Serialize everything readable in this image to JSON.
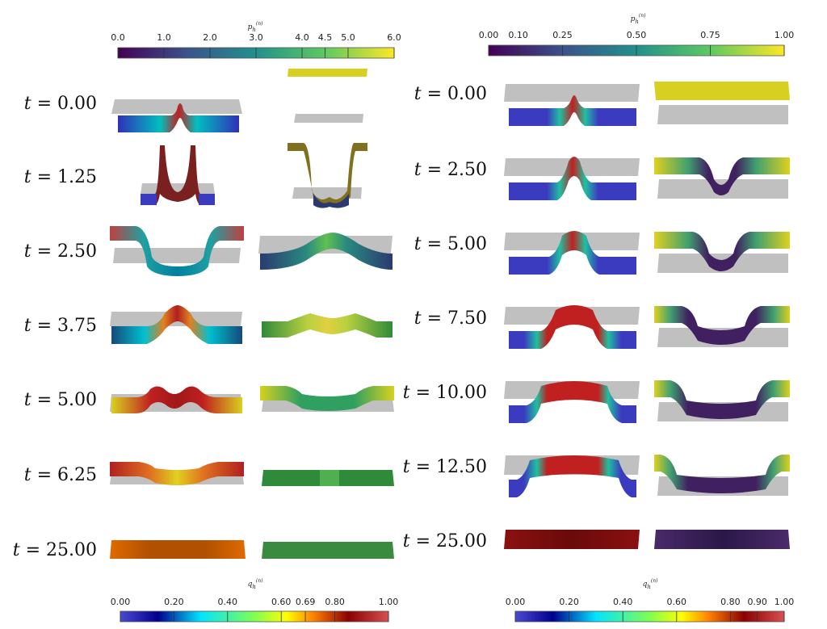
{
  "colorbars": {
    "p_left": {
      "title": "p_h^(n)",
      "ticks": [
        "0.0",
        "1.0",
        "2.0",
        "3.0",
        "4.0",
        "4.5",
        "5.0",
        "6.0"
      ],
      "tick_values": [
        0,
        1,
        2,
        3,
        4,
        4.5,
        5,
        6
      ],
      "range": [
        0,
        6
      ],
      "colormap": "viridis"
    },
    "p_right": {
      "title": "p_h^(n)",
      "ticks": [
        "0.00",
        "0.10",
        "0.25",
        "0.50",
        "0.75",
        "1.00"
      ],
      "tick_values": [
        0,
        0.1,
        0.25,
        0.5,
        0.75,
        1
      ],
      "range": [
        0,
        1
      ],
      "colormap": "viridis"
    },
    "q_left": {
      "title": "q_h^(n)",
      "ticks": [
        "0.00",
        "0.20",
        "0.40",
        "0.60",
        "0.69",
        "0.80",
        "1.00"
      ],
      "tick_values": [
        0,
        0.2,
        0.4,
        0.6,
        0.69,
        0.8,
        1
      ],
      "range": [
        0,
        1
      ],
      "colormap": "jet"
    },
    "q_right": {
      "title": "q_h^(n)",
      "ticks": [
        "0.00",
        "0.20",
        "0.40",
        "0.60",
        "0.80",
        "0.90",
        "1.00"
      ],
      "tick_values": [
        0,
        0.2,
        0.4,
        0.6,
        0.8,
        0.9,
        1
      ],
      "range": [
        0,
        1
      ],
      "colormap": "jet"
    }
  },
  "colors": {
    "viridis": [
      "#440154",
      "#3b528b",
      "#21918c",
      "#5ec962",
      "#fde725"
    ],
    "jet": [
      "#3030c0",
      "#00008f",
      "#00ffff",
      "#7fff7f",
      "#ffff00",
      "#ff7f00",
      "#8b0000",
      "#d04040"
    ],
    "gray_plane": "#c0c0c0"
  },
  "left_panel": {
    "rows": [
      {
        "label": "= 0.00",
        "var": "t"
      },
      {
        "label": "= 1.25",
        "var": "t"
      },
      {
        "label": "= 2.50",
        "var": "t"
      },
      {
        "label": "= 3.75",
        "var": "t"
      },
      {
        "label": "= 5.00",
        "var": "t"
      },
      {
        "label": "= 6.25",
        "var": "t"
      },
      {
        "label": "= 25.00",
        "var": "t"
      }
    ]
  },
  "right_panel": {
    "rows": [
      {
        "label": "= 0.00",
        "var": "t"
      },
      {
        "label": "= 2.50",
        "var": "t"
      },
      {
        "label": "= 5.00",
        "var": "t"
      },
      {
        "label": "= 7.50",
        "var": "t"
      },
      {
        "label": "= 10.00",
        "var": "t"
      },
      {
        "label": "= 12.50",
        "var": "t"
      },
      {
        "label": "= 25.00",
        "var": "t"
      }
    ]
  }
}
